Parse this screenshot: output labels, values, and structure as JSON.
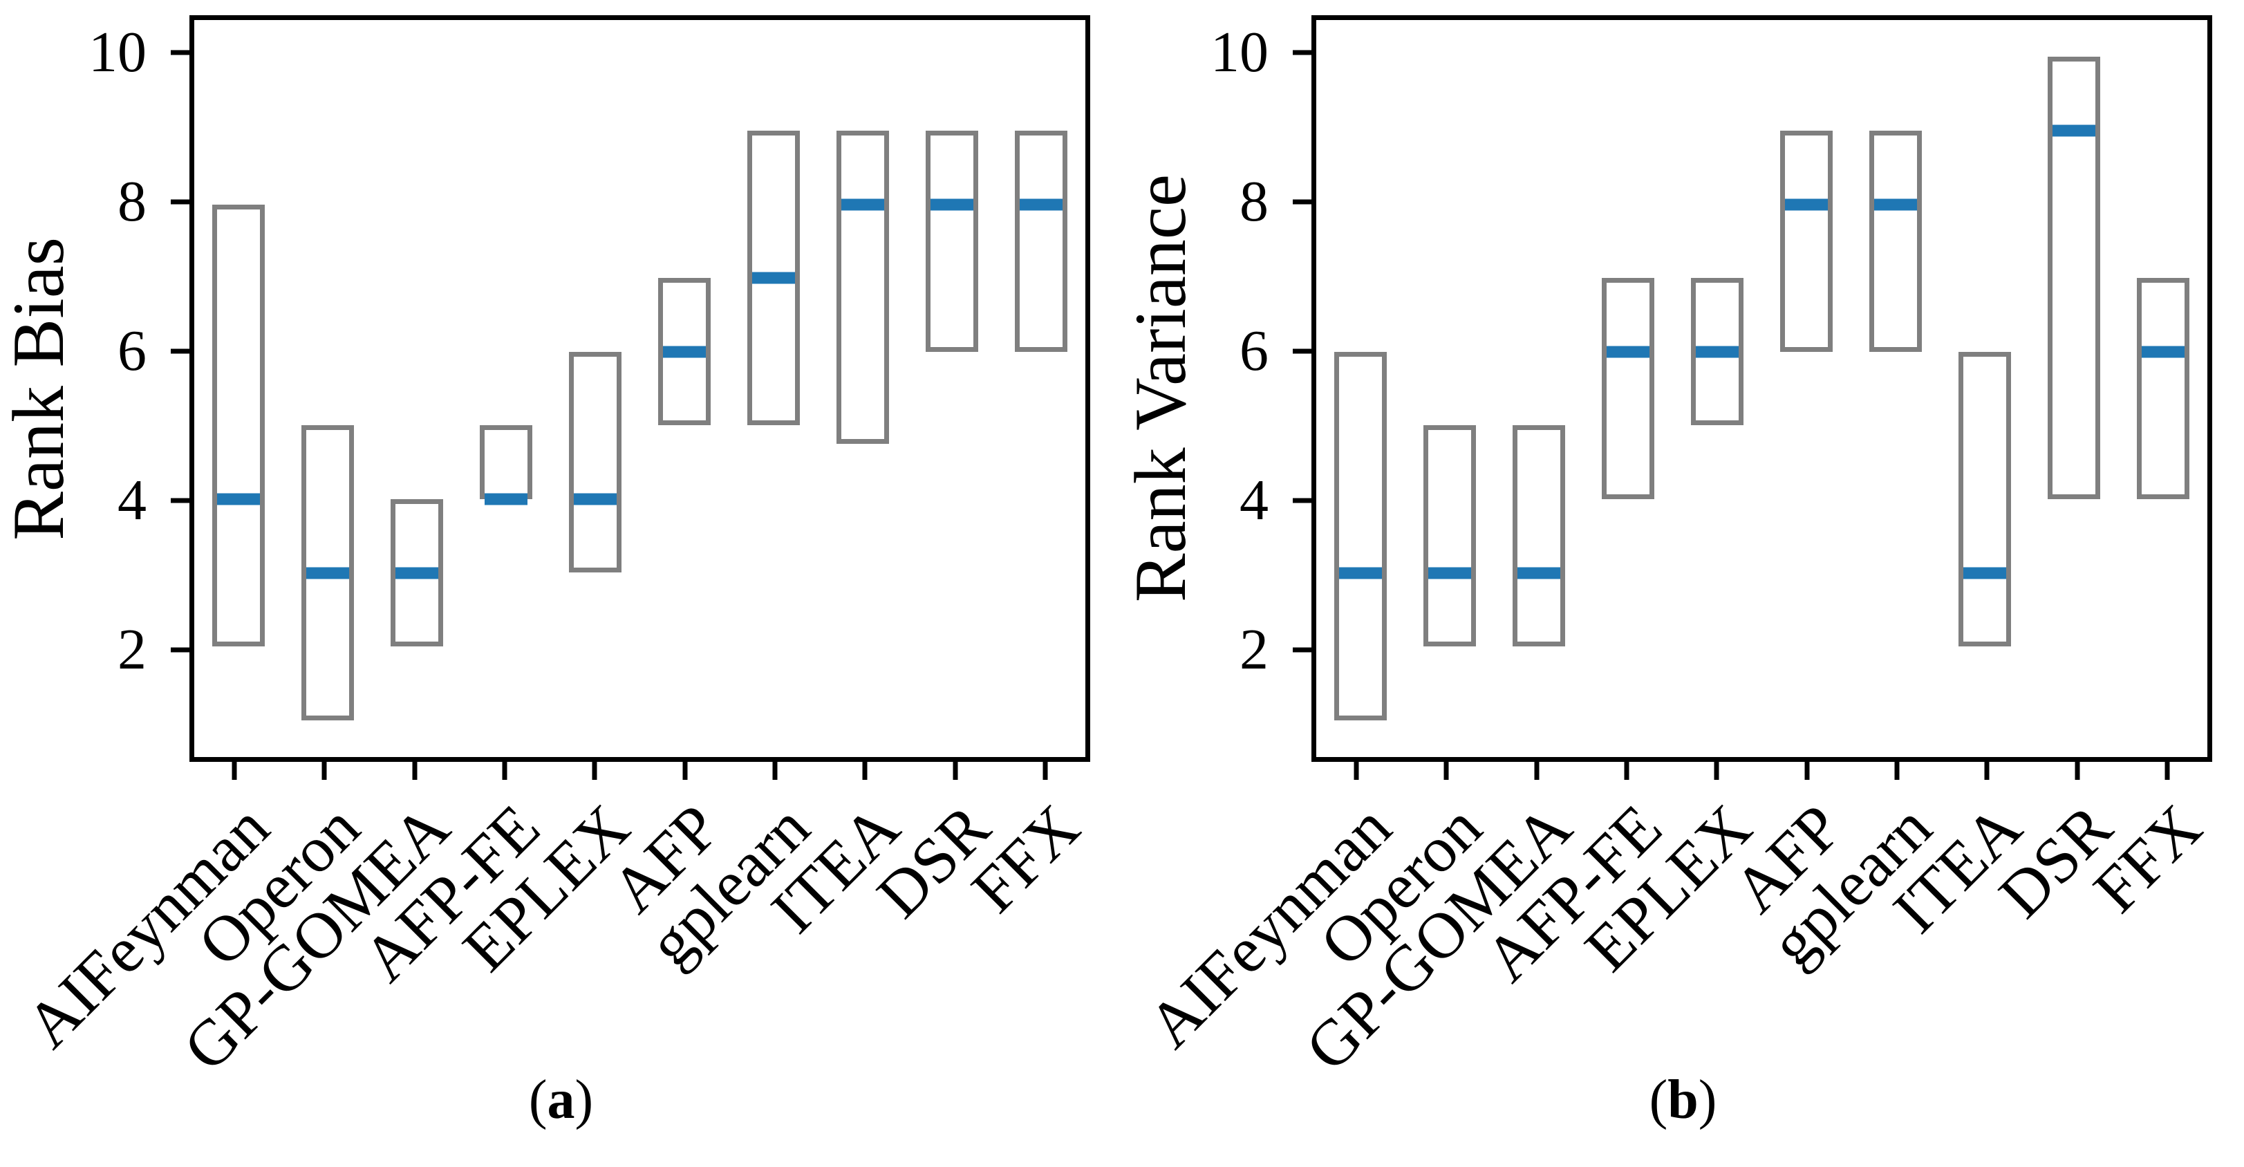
{
  "figure": {
    "background_color": "#ffffff",
    "axis_color": "#000000",
    "box_edge_color": "#7f7f7f",
    "median_color": "#1f77b4"
  },
  "chart_data": [
    {
      "type": "bar",
      "mark": "floating-range-box-with-median",
      "panel": "a",
      "title": "",
      "xlabel": "",
      "ylabel": "Rank Bias",
      "grid": false,
      "legend": null,
      "yticks": [
        2,
        4,
        6,
        8,
        10
      ],
      "ylim": [
        0.5,
        10.5
      ],
      "categories": [
        "AIFeynman",
        "Operon",
        "GP-GOMEA",
        "AFP-FE",
        "EPLEX",
        "AFP",
        "gplearn",
        "ITEA",
        "DSR",
        "FFX"
      ],
      "boxes": [
        {
          "category": "AIFeynman",
          "low": 2,
          "median": 4,
          "high": 8
        },
        {
          "category": "Operon",
          "low": 1,
          "median": 3,
          "high": 5
        },
        {
          "category": "GP-GOMEA",
          "low": 2,
          "median": 3,
          "high": 4
        },
        {
          "category": "AFP-FE",
          "low": 4,
          "median": 4,
          "high": 5
        },
        {
          "category": "EPLEX",
          "low": 3,
          "median": 4,
          "high": 6
        },
        {
          "category": "AFP",
          "low": 5,
          "median": 6,
          "high": 7
        },
        {
          "category": "gplearn",
          "low": 5,
          "median": 7,
          "high": 9
        },
        {
          "category": "ITEA",
          "low": 4.75,
          "median": 8,
          "high": 9
        },
        {
          "category": "DSR",
          "low": 6,
          "median": 8,
          "high": 9
        },
        {
          "category": "FFX",
          "low": 6,
          "median": 8,
          "high": 9
        }
      ],
      "caption": {
        "prefix": "(",
        "label": "a",
        "suffix": ")"
      }
    },
    {
      "type": "bar",
      "mark": "floating-range-box-with-median",
      "panel": "b",
      "title": "",
      "xlabel": "",
      "ylabel": "Rank Variance",
      "grid": false,
      "legend": null,
      "yticks": [
        2,
        4,
        6,
        8,
        10
      ],
      "ylim": [
        0.5,
        10.5
      ],
      "categories": [
        "AIFeynman",
        "Operon",
        "GP-GOMEA",
        "AFP-FE",
        "EPLEX",
        "AFP",
        "gplearn",
        "ITEA",
        "DSR",
        "FFX"
      ],
      "boxes": [
        {
          "category": "AIFeynman",
          "low": 1,
          "median": 3,
          "high": 6
        },
        {
          "category": "Operon",
          "low": 2,
          "median": 3,
          "high": 5
        },
        {
          "category": "GP-GOMEA",
          "low": 2,
          "median": 3,
          "high": 5
        },
        {
          "category": "AFP-FE",
          "low": 4,
          "median": 6,
          "high": 7
        },
        {
          "category": "EPLEX",
          "low": 5,
          "median": 6,
          "high": 7
        },
        {
          "category": "AFP",
          "low": 6,
          "median": 8,
          "high": 9
        },
        {
          "category": "gplearn",
          "low": 6,
          "median": 8,
          "high": 9
        },
        {
          "category": "ITEA",
          "low": 2,
          "median": 3,
          "high": 6
        },
        {
          "category": "DSR",
          "low": 4,
          "median": 9,
          "high": 10
        },
        {
          "category": "FFX",
          "low": 4,
          "median": 6,
          "high": 7
        }
      ],
      "caption": {
        "prefix": "(",
        "label": "b",
        "suffix": ")"
      }
    }
  ]
}
